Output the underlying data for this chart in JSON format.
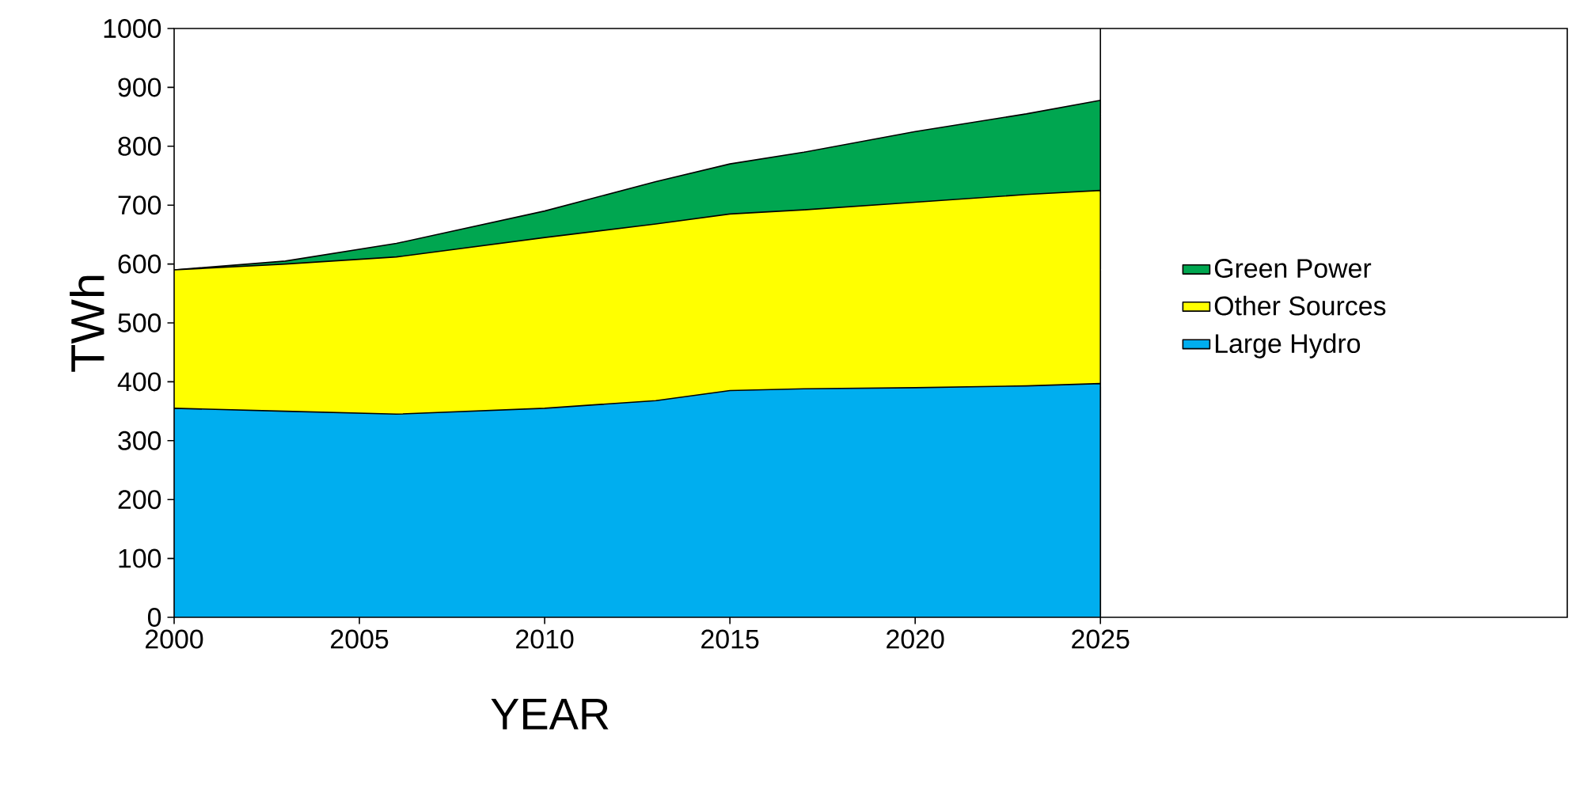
{
  "chart_data": {
    "type": "area",
    "stacked": true,
    "xlabel": "YEAR",
    "ylabel": "TWh",
    "x": [
      2000,
      2003,
      2006,
      2010,
      2013,
      2015,
      2017,
      2020,
      2023,
      2025
    ],
    "series": [
      {
        "name": "Large Hydro",
        "color": "#00aeef",
        "values": [
          355,
          350,
          345,
          355,
          368,
          385,
          388,
          390,
          393,
          397
        ]
      },
      {
        "name": "Other Sources",
        "color": "#ffff00",
        "values": [
          235,
          250,
          267,
          290,
          300,
          300,
          304,
          315,
          325,
          328
        ]
      },
      {
        "name": "Green Power",
        "color": "#00a650",
        "values": [
          0,
          5,
          23,
          45,
          72,
          85,
          98,
          120,
          137,
          153
        ]
      }
    ],
    "xlim": [
      2000,
      2037.6
    ],
    "ylim": [
      0,
      1000
    ],
    "xticks": [
      2000,
      2005,
      2010,
      2015,
      2020,
      2025
    ],
    "yticks": [
      0,
      100,
      200,
      300,
      400,
      500,
      600,
      700,
      800,
      900,
      1000
    ],
    "ref_lines": [
      {
        "axis": "x",
        "value": 2025,
        "color": "#000000"
      }
    ],
    "legend": "right"
  }
}
